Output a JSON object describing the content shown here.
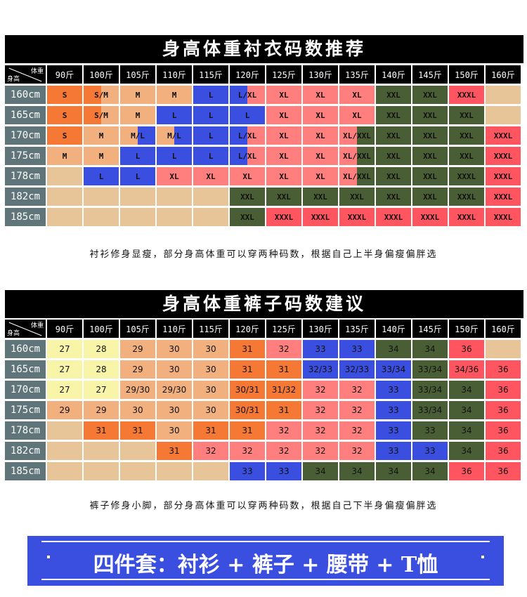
{
  "colors": {
    "O": "#f57835",
    "P": "#f2b07e",
    "B": "#3a4fdf",
    "K": "#ff7f7f",
    "G": "#4a5e35",
    "R": "#ff5560",
    "T": "#e8c598",
    "Y": "#f8f5a8"
  },
  "corner": {
    "weight": "体重",
    "height": "身高"
  },
  "weights": [
    "90斤",
    "100斤",
    "105斤",
    "110斤",
    "115斤",
    "120斤",
    "125斤",
    "130斤",
    "135斤",
    "140斤",
    "145斤",
    "150斤",
    "160斤"
  ],
  "heights": [
    "160cm",
    "165cm",
    "170cm",
    "175cm",
    "178cm",
    "182cm",
    "185cm"
  ],
  "shirt": {
    "title": "身高体重衬衣码数推荐",
    "note": "衬衫修身显瘦，部分身高体重可以穿两种码数，根据自己上半身偏瘦偏胖选",
    "rows": [
      [
        [
          "S",
          "O"
        ],
        [
          "S/M",
          "O|P"
        ],
        [
          "M",
          "P"
        ],
        [
          "M",
          "P"
        ],
        [
          "L",
          "B"
        ],
        [
          "L/XL",
          "B|K"
        ],
        [
          "XL",
          "K"
        ],
        [
          "XL",
          "K"
        ],
        [
          "XL",
          "K"
        ],
        [
          "XXL",
          "G"
        ],
        [
          "XXL",
          "G"
        ],
        [
          "XXXL",
          "R"
        ],
        [
          "",
          "T"
        ]
      ],
      [
        [
          "S",
          "O"
        ],
        [
          "S/M",
          "O|P"
        ],
        [
          "M",
          "P"
        ],
        [
          "L",
          "B"
        ],
        [
          "L",
          "B"
        ],
        [
          "L",
          "B"
        ],
        [
          "XL",
          "K"
        ],
        [
          "XL",
          "K"
        ],
        [
          "XL",
          "K"
        ],
        [
          "XXL",
          "G"
        ],
        [
          "XXL",
          "G"
        ],
        [
          "XXL",
          "G"
        ],
        [
          "",
          "T"
        ]
      ],
      [
        [
          "S",
          "O"
        ],
        [
          "M",
          "P"
        ],
        [
          "M/L",
          "P|B"
        ],
        [
          "M/L",
          "P|B"
        ],
        [
          "L",
          "B"
        ],
        [
          "L/XL",
          "B|K"
        ],
        [
          "XL",
          "K"
        ],
        [
          "XL",
          "K"
        ],
        [
          "XL/XXL",
          "K|G"
        ],
        [
          "XXL",
          "G"
        ],
        [
          "XXL",
          "G"
        ],
        [
          "XXL",
          "G"
        ],
        [
          "XXXL",
          "R"
        ]
      ],
      [
        [
          "M",
          "P"
        ],
        [
          "M",
          "P"
        ],
        [
          "L",
          "B"
        ],
        [
          "L",
          "B"
        ],
        [
          "L",
          "B"
        ],
        [
          "L/XL",
          "B|K"
        ],
        [
          "XL",
          "K"
        ],
        [
          "XL",
          "K"
        ],
        [
          "XL/XXL",
          "K|G"
        ],
        [
          "XXL",
          "G"
        ],
        [
          "XXL",
          "G"
        ],
        [
          "XXL",
          "G"
        ],
        [
          "XXXL",
          "R"
        ]
      ],
      [
        [
          "",
          "T"
        ],
        [
          "L",
          "B"
        ],
        [
          "L",
          "B"
        ],
        [
          "XL",
          "K"
        ],
        [
          "XL",
          "K"
        ],
        [
          "XL",
          "K"
        ],
        [
          "XL",
          "K"
        ],
        [
          "XL",
          "K"
        ],
        [
          "XL/XXL",
          "K|G"
        ],
        [
          "XXL",
          "G"
        ],
        [
          "XXL",
          "G"
        ],
        [
          "XXXL",
          "G"
        ],
        [
          "XXXL",
          "R"
        ]
      ],
      [
        [
          "",
          "T"
        ],
        [
          "",
          "T"
        ],
        [
          "",
          "T"
        ],
        [
          "",
          "T"
        ],
        [
          "",
          "T"
        ],
        [
          "XXL",
          "G"
        ],
        [
          "XXL",
          "G"
        ],
        [
          "XXL",
          "G"
        ],
        [
          "XXL",
          "G"
        ],
        [
          "XXL",
          "G"
        ],
        [
          "XXL",
          "G"
        ],
        [
          "XXXL",
          "G"
        ],
        [
          "XXXL",
          "R"
        ]
      ],
      [
        [
          "",
          "T"
        ],
        [
          "",
          "T"
        ],
        [
          "",
          "T"
        ],
        [
          "",
          "T"
        ],
        [
          "",
          "T"
        ],
        [
          "XXL",
          "G"
        ],
        [
          "XXXL",
          "R"
        ],
        [
          "XXXL",
          "R"
        ],
        [
          "XXXL",
          "R"
        ],
        [
          "XXXL",
          "R"
        ],
        [
          "XXXL",
          "R"
        ],
        [
          "XXXL",
          "R"
        ],
        [
          "XXXL",
          "R"
        ]
      ]
    ]
  },
  "pants": {
    "title": "身高体重裤子码数建议",
    "note": "裤子修身小脚，部分身高体重可以穿两种码数，根据自己下半身偏瘦偏胖选",
    "rows": [
      [
        [
          "27",
          "Y"
        ],
        [
          "28",
          "Y"
        ],
        [
          "29",
          "P"
        ],
        [
          "30",
          "P"
        ],
        [
          "30",
          "P"
        ],
        [
          "31",
          "O"
        ],
        [
          "32",
          "K"
        ],
        [
          "33",
          "B"
        ],
        [
          "33",
          "B"
        ],
        [
          "34",
          "G"
        ],
        [
          "34",
          "G"
        ],
        [
          "36",
          "R"
        ],
        [
          "",
          "T"
        ]
      ],
      [
        [
          "27",
          "Y"
        ],
        [
          "28",
          "Y"
        ],
        [
          "29",
          "P"
        ],
        [
          "30",
          "P"
        ],
        [
          "30",
          "P"
        ],
        [
          "31",
          "O"
        ],
        [
          "31",
          "O"
        ],
        [
          "32/33",
          "B"
        ],
        [
          "32/33",
          "B"
        ],
        [
          "33/34",
          "B"
        ],
        [
          "33/34",
          "G"
        ],
        [
          "34/36",
          "R"
        ],
        [
          "36",
          "R"
        ]
      ],
      [
        [
          "27",
          "Y"
        ],
        [
          "27",
          "Y"
        ],
        [
          "29/30",
          "P"
        ],
        [
          "29/30",
          "P"
        ],
        [
          "30",
          "P"
        ],
        [
          "30/31",
          "O"
        ],
        [
          "31/32",
          "O"
        ],
        [
          "32",
          "K"
        ],
        [
          "32",
          "K"
        ],
        [
          "33",
          "B"
        ],
        [
          "33/34",
          "G"
        ],
        [
          "34",
          "G"
        ],
        [
          "36",
          "R"
        ]
      ],
      [
        [
          "29",
          "P"
        ],
        [
          "29",
          "P"
        ],
        [
          "30",
          "P"
        ],
        [
          "30",
          "P"
        ],
        [
          "30",
          "P"
        ],
        [
          "30/31",
          "O"
        ],
        [
          "31",
          "O"
        ],
        [
          "32",
          "K"
        ],
        [
          "32",
          "K"
        ],
        [
          "33",
          "B"
        ],
        [
          "33/34",
          "G"
        ],
        [
          "34",
          "G"
        ],
        [
          "36",
          "R"
        ]
      ],
      [
        [
          "",
          "T"
        ],
        [
          "31",
          "O"
        ],
        [
          "31",
          "O"
        ],
        [
          "30",
          "P"
        ],
        [
          "31",
          "O"
        ],
        [
          "31",
          "O"
        ],
        [
          "32",
          "K"
        ],
        [
          "32",
          "K"
        ],
        [
          "32",
          "K"
        ],
        [
          "33",
          "B"
        ],
        [
          "33",
          "G"
        ],
        [
          "34",
          "G"
        ],
        [
          "36",
          "R"
        ]
      ],
      [
        [
          "",
          "T"
        ],
        [
          "",
          "T"
        ],
        [
          "",
          "T"
        ],
        [
          "31",
          "O"
        ],
        [
          "32",
          "K"
        ],
        [
          "32",
          "K"
        ],
        [
          "32",
          "K"
        ],
        [
          "32",
          "K"
        ],
        [
          "32",
          "K"
        ],
        [
          "33",
          "B"
        ],
        [
          "33",
          "B"
        ],
        [
          "34",
          "G"
        ],
        [
          "36",
          "R"
        ]
      ],
      [
        [
          "",
          "T"
        ],
        [
          "",
          "T"
        ],
        [
          "",
          "T"
        ],
        [
          "",
          "T"
        ],
        [
          "",
          "T"
        ],
        [
          "33",
          "B"
        ],
        [
          "33",
          "B"
        ],
        [
          "34",
          "G"
        ],
        [
          "34",
          "G"
        ],
        [
          "34",
          "G"
        ],
        [
          "34",
          "G"
        ],
        [
          "36",
          "R"
        ],
        [
          "36",
          "R"
        ]
      ]
    ]
  },
  "banner": {
    "text": "四件套：衬衫 + 裤子 + 腰带 + T恤"
  }
}
